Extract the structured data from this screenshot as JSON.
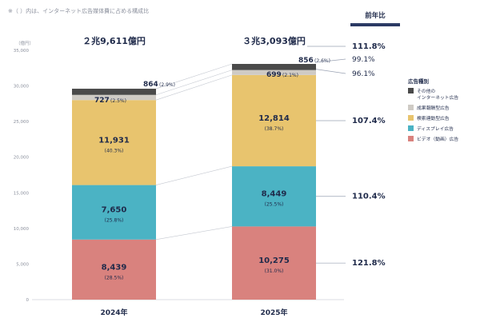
{
  "note": "※（ ）内は、インターネット広告媒体費に占める構成比",
  "yoy_header": "前年比",
  "chart_data": {
    "type": "bar",
    "stacked": true,
    "ylabel": "（億円）",
    "ylim": [
      0,
      35000
    ],
    "yticks": [
      "0",
      "5,000",
      "10,000",
      "15,000",
      "20,000",
      "25,000",
      "30,000",
      "35,000"
    ],
    "ytick_values": [
      0,
      5000,
      10000,
      15000,
      20000,
      25000,
      30000,
      35000
    ],
    "grid": false,
    "legend_position": "right",
    "legend_title": "広告種別",
    "categories": [
      "2024年",
      "2025年"
    ],
    "totals": [
      29611,
      33093
    ],
    "total_labels": [
      "２兆9,611億円",
      "３兆3,093億円"
    ],
    "total_yoy": "111.8%",
    "series": [
      {
        "name": "ビデオ（動画）広告",
        "color": "#d9827e",
        "values": [
          8439,
          10275
        ],
        "value_labels": [
          "8,439",
          "10,275"
        ],
        "shares": [
          "(28.5%)",
          "(31.0%)"
        ],
        "yoy": "121.8%"
      },
      {
        "name": "ディスプレイ広告",
        "color": "#4bb3c4",
        "values": [
          7650,
          8449
        ],
        "value_labels": [
          "7,650",
          "8,449"
        ],
        "shares": [
          "(25.8%)",
          "(25.5%)"
        ],
        "yoy": "110.4%"
      },
      {
        "name": "検索連動型広告",
        "color": "#e8c46e",
        "values": [
          11931,
          12814
        ],
        "value_labels": [
          "11,931",
          "12,814"
        ],
        "shares": [
          "(40.3%)",
          "(38.7%)"
        ],
        "yoy": "107.4%"
      },
      {
        "name": "成果報酬型広告",
        "color": "#cfcbc5",
        "values": [
          727,
          699
        ],
        "value_labels": [
          "727",
          "699"
        ],
        "shares": [
          "(2.5%)",
          "(2.1%)"
        ],
        "yoy": "96.1%"
      },
      {
        "name": "その他のインターネット広告",
        "legend_lines": [
          "その他の",
          "インターネット広告"
        ],
        "color": "#4a4a4a",
        "values": [
          864,
          856
        ],
        "value_labels": [
          "864",
          "856"
        ],
        "shares": [
          "(2.9%)",
          "(2.6%)"
        ],
        "yoy": "99.1%"
      }
    ]
  }
}
